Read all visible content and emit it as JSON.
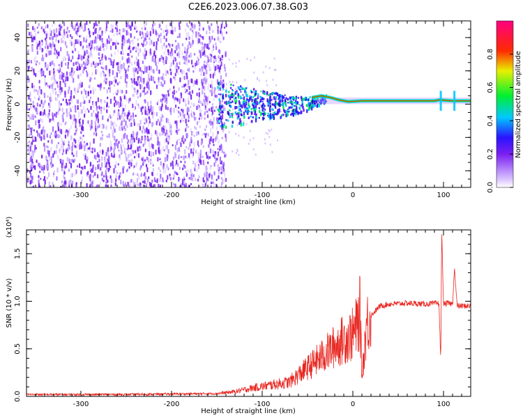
{
  "chart_data": [
    {
      "type": "heatmap",
      "title": "C2E6.2023.006.07.38.G03",
      "xlabel": "Height of straight line (km)",
      "ylabel": "Frequency (Hz)",
      "xlim": [
        -360,
        130
      ],
      "ylim": [
        -50,
        50
      ],
      "x_ticks": [
        -300,
        -200,
        -100,
        0,
        100
      ],
      "x_tick_labels": [
        "-300",
        "-200",
        "-100",
        "0",
        "100"
      ],
      "y_ticks": [
        40,
        20,
        0,
        -20,
        -40
      ],
      "y_tick_labels": [
        "40",
        "20",
        "0",
        "-20",
        "-40"
      ],
      "colorbar": {
        "label": "Normalized spectral amplitude",
        "range": [
          0,
          1
        ],
        "ticks": [
          0.0,
          0.2,
          0.4,
          0.6,
          0.8
        ],
        "tick_labels": [
          "0.0",
          "0.2",
          "0.4",
          "0.6",
          "0.8"
        ],
        "colormap": "rainbow (white-violet-blue-cyan-green-yellow-red-magenta)"
      },
      "features": {
        "noise_region_x": [
          -360,
          -150
        ],
        "transition_region_x": [
          -150,
          -30
        ],
        "signal_line_x": [
          -30,
          130
        ],
        "signal_frequency_hz": 2
      },
      "grid": false
    },
    {
      "type": "line",
      "xlabel": "Height of straight line (km)",
      "ylabel": "SNR (10 * v/v)",
      "y_exponent_label": "(x10⁴)",
      "xlim": [
        -360,
        130
      ],
      "ylim": [
        0,
        1.75
      ],
      "x_ticks": [
        -300,
        -200,
        -100,
        0,
        100
      ],
      "x_tick_labels": [
        "-300",
        "-200",
        "-100",
        "0",
        "100"
      ],
      "y_ticks": [
        0.0,
        0.5,
        1.0,
        1.5
      ],
      "y_tick_labels": [
        "0.0",
        "0.5",
        "1.0",
        "1.5"
      ],
      "line_color": "#e8251f",
      "series": [
        {
          "x": [
            -360,
            -300,
            -250,
            -200,
            -150,
            -130,
            -110,
            -90,
            -70,
            -50,
            -30,
            -10,
            0,
            5,
            8,
            10,
            15,
            20,
            30,
            40,
            60,
            80,
            95,
            97,
            98,
            100,
            105,
            110,
            112,
            115,
            130
          ],
          "y": [
            0.02,
            0.02,
            0.02,
            0.025,
            0.03,
            0.05,
            0.09,
            0.12,
            0.15,
            0.3,
            0.45,
            0.6,
            0.65,
            0.75,
            0.9,
            0.2,
            0.75,
            0.85,
            0.95,
            0.97,
            0.98,
            0.97,
            0.98,
            0.35,
            1.75,
            0.97,
            0.98,
            0.97,
            1.35,
            0.95,
            0.95
          ]
        }
      ],
      "grid": false
    }
  ]
}
